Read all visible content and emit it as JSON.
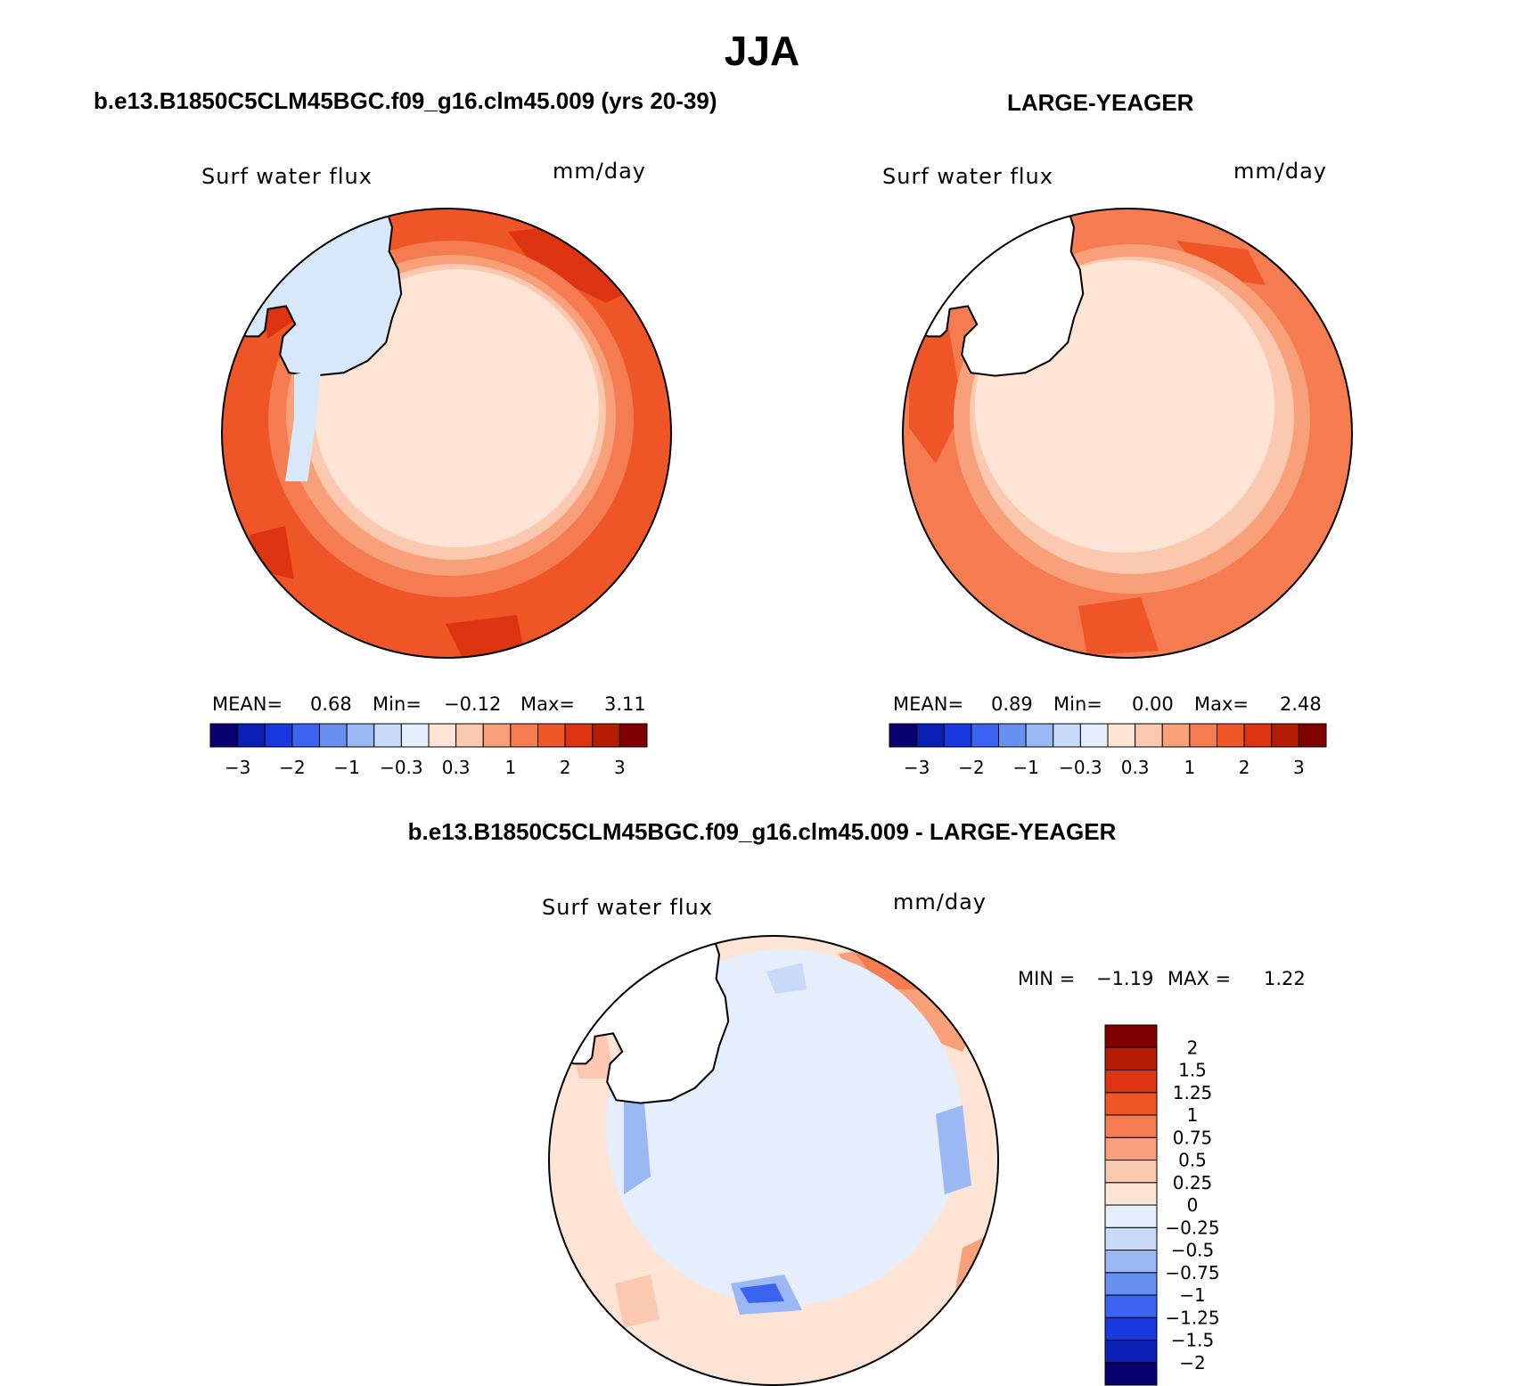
{
  "figure": {
    "title": "JJA",
    "variable": "Surf water flux",
    "units": "mm/day"
  },
  "panels": [
    {
      "title": "b.e13.B1850C5CLM45BGC.f09_g16.clm45.009 (yrs 20-39)",
      "variable_label": "Surf water flux",
      "units_label": "mm/day",
      "stats": {
        "mean_label": "MEAN=",
        "mean": "0.68",
        "min_label": "Min=",
        "min": "−0.12",
        "max_label": "Max=",
        "max": "3.11"
      }
    },
    {
      "title": "LARGE-YEAGER",
      "variable_label": "Surf water flux",
      "units_label": "mm/day",
      "stats": {
        "mean_label": "MEAN=",
        "mean": "0.89",
        "min_label": "Min=",
        "min": "0.00",
        "max_label": "Max=",
        "max": "2.48"
      }
    },
    {
      "title": "b.e13.B1850C5CLM45BGC.f09_g16.clm45.009 - LARGE-YEAGER",
      "variable_label": "Surf water flux",
      "units_label": "mm/day",
      "stats": {
        "min_label": "MIN =",
        "min": "−1.19",
        "max_label": "MAX =",
        "max": "1.22"
      }
    }
  ],
  "colorbar_abs": {
    "colors": [
      "#08006e",
      "#0a20b4",
      "#1838e0",
      "#3a64f0",
      "#6890f0",
      "#9cb8f4",
      "#c8daf8",
      "#e4eefc",
      "#fde4d4",
      "#fbc8b0",
      "#f8a07a",
      "#f47c50",
      "#ee5628",
      "#dc3410",
      "#b41c04",
      "#7e0000"
    ],
    "tick_labels": [
      "−3",
      "−2",
      "−1",
      "−0.3",
      "0.3",
      "1",
      "2",
      "3"
    ]
  },
  "colorbar_diff": {
    "colors": [
      "#08006e",
      "#0a20b4",
      "#1838e0",
      "#3a64f0",
      "#6890f0",
      "#9cb8f4",
      "#c8daf8",
      "#e4eefc",
      "#fde4d4",
      "#fbc8b0",
      "#f8a07a",
      "#f47c50",
      "#ee5628",
      "#dc3410",
      "#b41c04",
      "#7e0000"
    ],
    "tick_labels": [
      "−2",
      "−1.5",
      "−1.25",
      "−1",
      "−0.75",
      "−0.5",
      "−0.25",
      "0",
      "0.25",
      "0.5",
      "0.75",
      "1",
      "1.25",
      "1.5",
      "2"
    ]
  }
}
